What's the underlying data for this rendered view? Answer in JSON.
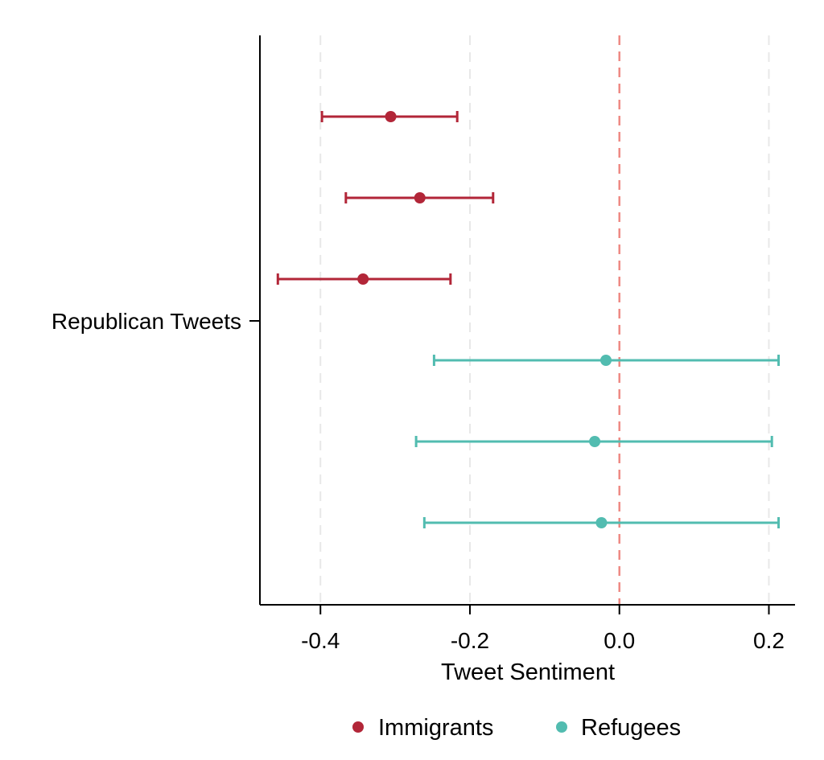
{
  "chart_data": {
    "type": "scatter",
    "xlabel": "Tweet Sentiment",
    "ylabel": "",
    "xlim": [
      -0.481,
      0.235
    ],
    "x_ticks": [
      -0.4,
      -0.2,
      0.0,
      0.2
    ],
    "x_tick_labels": [
      "-0.4",
      "-0.2",
      "0.0",
      "0.2"
    ],
    "y_category": "Republican Tweets",
    "grid": "vertical dashed",
    "reference_line": 0.0,
    "legend_position": "bottom",
    "series": [
      {
        "name": "Immigrants",
        "color": "#b22638",
        "points": [
          {
            "estimate": -0.306,
            "lower": -0.398,
            "upper": -0.217
          },
          {
            "estimate": -0.267,
            "lower": -0.366,
            "upper": -0.169
          },
          {
            "estimate": -0.343,
            "lower": -0.457,
            "upper": -0.226
          }
        ]
      },
      {
        "name": "Refugees",
        "color": "#52bcb0",
        "points": [
          {
            "estimate": -0.018,
            "lower": -0.248,
            "upper": 0.213
          },
          {
            "estimate": -0.033,
            "lower": -0.272,
            "upper": 0.204
          },
          {
            "estimate": -0.024,
            "lower": -0.261,
            "upper": 0.213
          }
        ]
      }
    ],
    "reference_line_color": "#ee8a84",
    "grid_color": "#e8e8e8"
  }
}
